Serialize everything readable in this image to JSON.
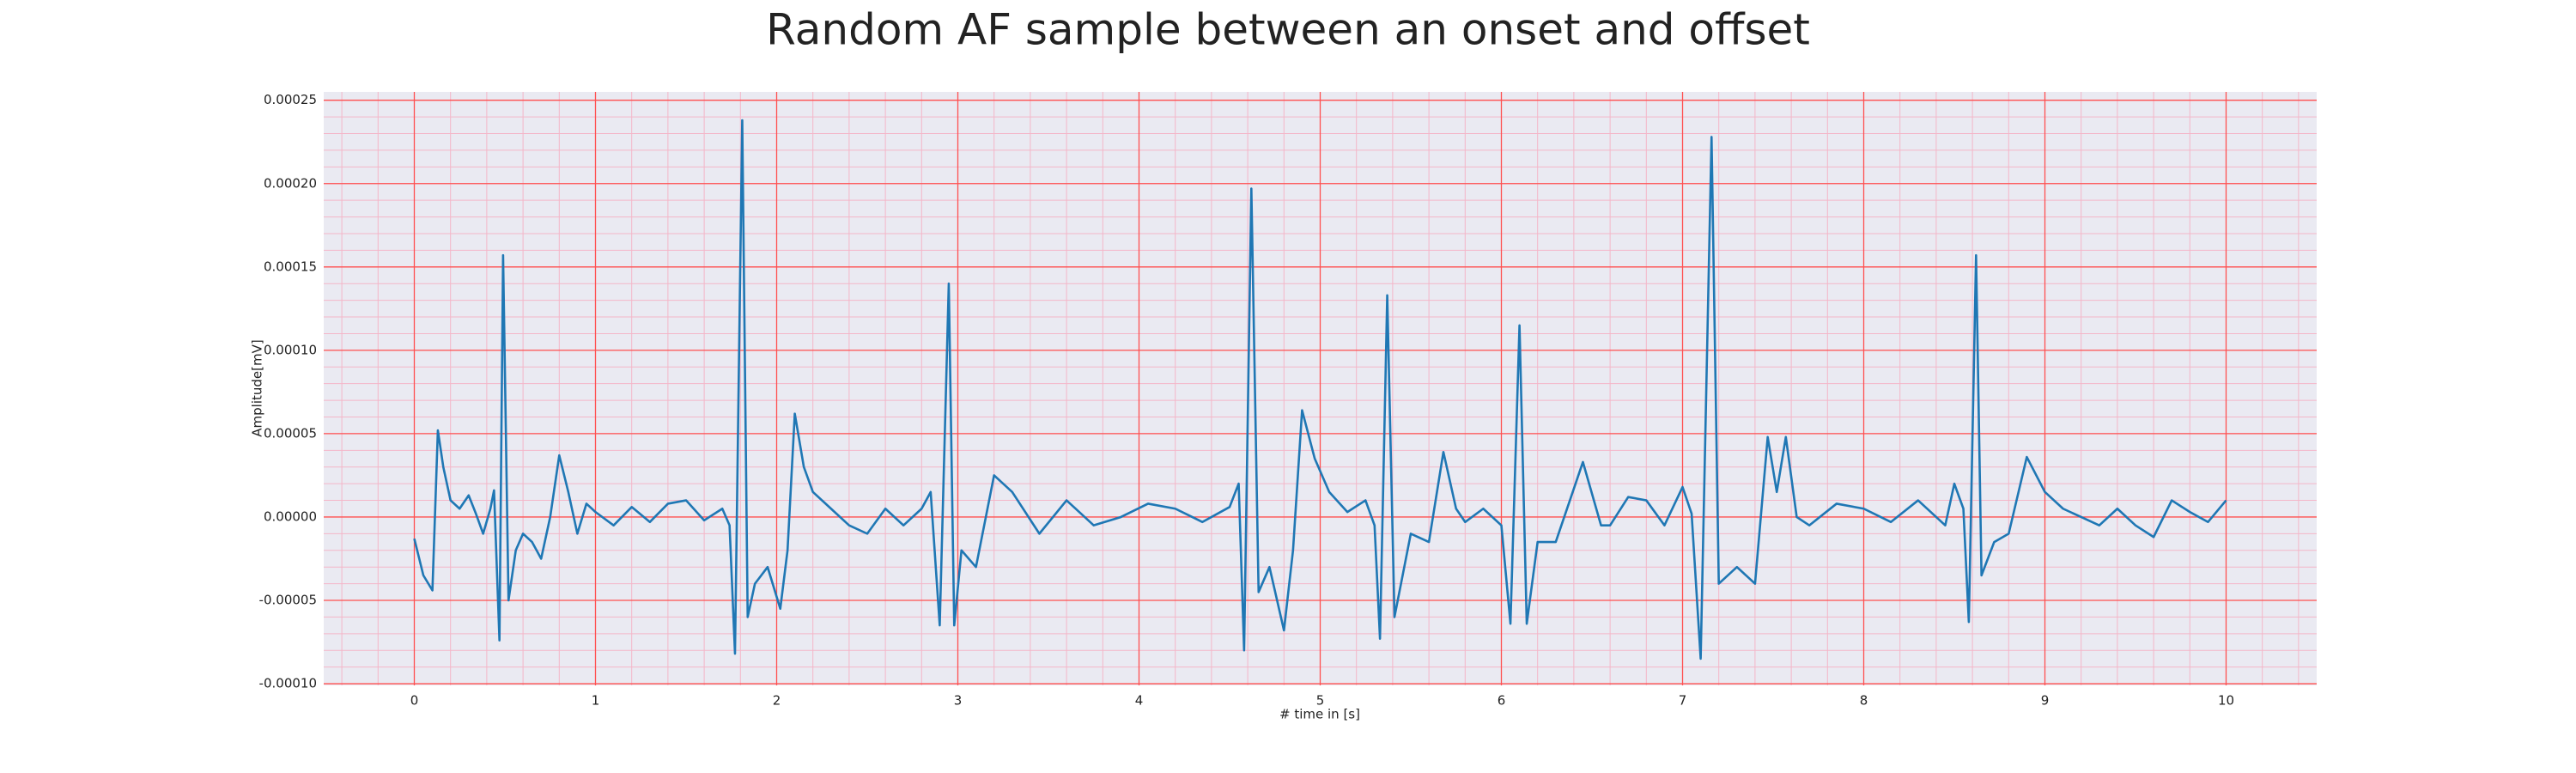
{
  "chart_data": {
    "type": "line",
    "title": "Random AF sample between an onset and offset",
    "xlabel": "# time in [s]",
    "ylabel": "Amplitude[mV]",
    "x": [
      0,
      0.05,
      0.1,
      0.13,
      0.16,
      0.2,
      0.25,
      0.3,
      0.34,
      0.38,
      0.42,
      0.44,
      0.47,
      0.49,
      0.52,
      0.56,
      0.6,
      0.65,
      0.7,
      0.75,
      0.8,
      0.85,
      0.9,
      0.95,
      1.0,
      1.1,
      1.2,
      1.3,
      1.4,
      1.5,
      1.6,
      1.7,
      1.74,
      1.77,
      1.81,
      1.84,
      1.88,
      1.95,
      2.02,
      2.06,
      2.1,
      2.15,
      2.2,
      2.3,
      2.4,
      2.5,
      2.6,
      2.7,
      2.8,
      2.85,
      2.9,
      2.95,
      2.98,
      3.02,
      3.1,
      3.2,
      3.3,
      3.45,
      3.6,
      3.75,
      3.9,
      4.05,
      4.2,
      4.35,
      4.5,
      4.55,
      4.58,
      4.62,
      4.66,
      4.72,
      4.8,
      4.85,
      4.9,
      4.97,
      5.05,
      5.15,
      5.25,
      5.3,
      5.33,
      5.37,
      5.41,
      5.5,
      5.6,
      5.68,
      5.75,
      5.8,
      5.9,
      6.0,
      6.05,
      6.1,
      6.14,
      6.2,
      6.3,
      6.45,
      6.55,
      6.6,
      6.7,
      6.8,
      6.9,
      7.0,
      7.05,
      7.1,
      7.16,
      7.2,
      7.3,
      7.4,
      7.47,
      7.52,
      7.57,
      7.63,
      7.7,
      7.85,
      8.0,
      8.15,
      8.3,
      8.45,
      8.5,
      8.55,
      8.58,
      8.62,
      8.65,
      8.72,
      8.8,
      8.9,
      9.0,
      9.1,
      9.2,
      9.3,
      9.4,
      9.5,
      9.6,
      9.7,
      9.8,
      9.9,
      10.0
    ],
    "values": [
      -1.3e-05,
      -3.5e-05,
      -4.4e-05,
      5.2e-05,
      3e-05,
      1e-05,
      5e-06,
      1.3e-05,
      2e-06,
      -1e-05,
      5e-06,
      1.6e-05,
      -7.4e-05,
      0.000157,
      -5e-05,
      -2e-05,
      -1e-05,
      -1.5e-05,
      -2.5e-05,
      0.0,
      3.7e-05,
      1.5e-05,
      -1e-05,
      8e-06,
      3e-06,
      -5e-06,
      6e-06,
      -3e-06,
      8e-06,
      1e-05,
      -2e-06,
      5e-06,
      -5e-06,
      -8.2e-05,
      0.000238,
      -6e-05,
      -4e-05,
      -3e-05,
      -5.5e-05,
      -2e-05,
      6.2e-05,
      3e-05,
      1.5e-05,
      5e-06,
      -5e-06,
      -1e-05,
      5e-06,
      -5e-06,
      5e-06,
      1.5e-05,
      -6.5e-05,
      0.00014,
      -6.5e-05,
      -2e-05,
      -3e-05,
      2.5e-05,
      1.5e-05,
      -1e-05,
      1e-05,
      -5e-06,
      0.0,
      8e-06,
      5e-06,
      -3e-06,
      6e-06,
      2e-05,
      -8e-05,
      0.000197,
      -4.5e-05,
      -3e-05,
      -6.8e-05,
      -2e-05,
      6.4e-05,
      3.5e-05,
      1.5e-05,
      3e-06,
      1e-05,
      -5e-06,
      -7.3e-05,
      0.000133,
      -6e-05,
      -1e-05,
      -1.5e-05,
      3.9e-05,
      5e-06,
      -3e-06,
      5e-06,
      -5e-06,
      -6.4e-05,
      0.000115,
      -6.4e-05,
      -1.5e-05,
      -1.5e-05,
      3.3e-05,
      -5e-06,
      -5e-06,
      1.2e-05,
      1e-05,
      -5e-06,
      1.8e-05,
      2e-06,
      -8.5e-05,
      0.000228,
      -4e-05,
      -3e-05,
      -4e-05,
      4.8e-05,
      1.5e-05,
      4.8e-05,
      0.0,
      -5e-06,
      8e-06,
      5e-06,
      -3e-06,
      1e-05,
      -5e-06,
      2e-05,
      5e-06,
      -6.3e-05,
      0.000157,
      -3.5e-05,
      -1.5e-05,
      -1e-05,
      3.6e-05,
      1.5e-05,
      5e-06,
      0.0,
      -5e-06,
      5e-06,
      -5e-06,
      -1.2e-05,
      1e-05,
      3e-06,
      -3e-06,
      1e-05
    ],
    "color": "#1f77b4",
    "xlim": [
      -0.5,
      10.5
    ],
    "xticks": [
      0,
      1,
      2,
      3,
      4,
      5,
      6,
      7,
      8,
      9,
      10
    ],
    "ylim": [
      -0.000101,
      0.000255
    ],
    "yticks": [
      {
        "value": -0.0001,
        "label": "-0.00010"
      },
      {
        "value": -5e-05,
        "label": "-0.00005"
      },
      {
        "value": 0,
        "label": "0.00000"
      },
      {
        "value": 5e-05,
        "label": "0.00005"
      },
      {
        "value": 0.0001,
        "label": "0.00010"
      },
      {
        "value": 0.00015,
        "label": "0.00015"
      },
      {
        "value": 0.0002,
        "label": "0.00020"
      },
      {
        "value": 0.00025,
        "label": "0.00025"
      }
    ],
    "grid": true,
    "minor_grid": true
  }
}
